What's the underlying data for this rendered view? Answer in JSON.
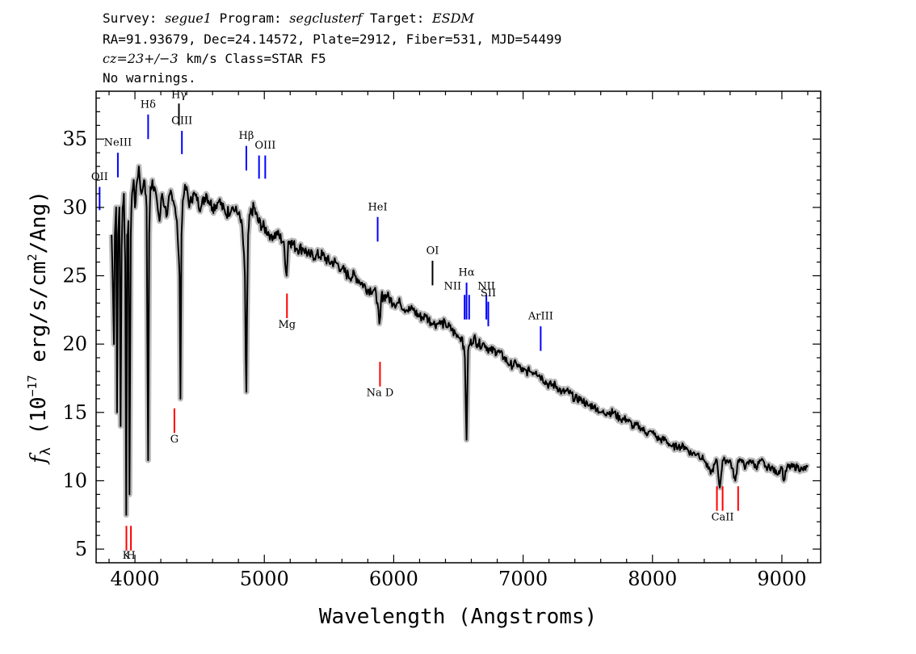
{
  "header": {
    "survey_label": "Survey:",
    "survey": "segue1",
    "program_label": "Program:",
    "program": "segclusterf",
    "target_label": "Target:",
    "target": "ESDM",
    "line2": "RA=91.93679, Dec=24.14572, Plate=2912, Fiber=531, MJD=54499",
    "cz": "cz=23+/−3",
    "cz_unit": "km/s",
    "class_text": "Class=STAR F5",
    "warnings": "No warnings."
  },
  "chart_data": {
    "type": "line",
    "xlabel": "Wavelength (Angstroms)",
    "ylabel": "f_λ (10^-17 erg/s/cm^2/Ang)",
    "ylabel_parts": {
      "f": "f",
      "lambda": "λ",
      "p1": " (10",
      "exp1": "−17",
      "p2": " erg/s/cm",
      "exp2": "2",
      "p3": "/Ang)"
    },
    "xlim": [
      3700,
      9300
    ],
    "ylim": [
      4,
      38.5
    ],
    "xticks": [
      4000,
      5000,
      6000,
      7000,
      8000,
      9000
    ],
    "yticks": [
      5,
      10,
      15,
      20,
      25,
      30,
      35
    ],
    "series": [
      {
        "color": "#000000",
        "error_color": "#bbbbbb",
        "x": [
          3820,
          3830,
          3838,
          3845,
          3855,
          3862,
          3870,
          3880,
          3889,
          3897,
          3905,
          3915,
          3925,
          3933,
          3940,
          3950,
          3958,
          3968,
          3978,
          3990,
          4000,
          4010,
          4030,
          4050,
          4070,
          4080,
          4090,
          4102,
          4110,
          4120,
          4135,
          4150,
          4170,
          4190,
          4210,
          4230,
          4250,
          4270,
          4290,
          4310,
          4325,
          4335,
          4345,
          4352,
          4360,
          4370,
          4380,
          4400,
          4420,
          4450,
          4480,
          4510,
          4550,
          4600,
          4650,
          4700,
          4750,
          4800,
          4830,
          4850,
          4856,
          4861,
          4866,
          4875,
          4890,
          4920,
          4950,
          5000,
          5050,
          5100,
          5150,
          5172,
          5185,
          5200,
          5250,
          5300,
          5350,
          5400,
          5450,
          5500,
          5550,
          5600,
          5650,
          5700,
          5750,
          5800,
          5850,
          5875,
          5889,
          5896,
          5905,
          5920,
          5950,
          6000,
          6050,
          6100,
          6150,
          6200,
          6250,
          6300,
          6350,
          6400,
          6450,
          6500,
          6530,
          6550,
          6558,
          6563,
          6568,
          6575,
          6590,
          6620,
          6650,
          6700,
          6750,
          6800,
          6850,
          6900,
          6950,
          7000,
          7050,
          7100,
          7150,
          7200,
          7250,
          7300,
          7350,
          7400,
          7450,
          7500,
          7550,
          7600,
          7650,
          7700,
          7750,
          7800,
          7850,
          7900,
          7950,
          8000,
          8050,
          8100,
          8150,
          8200,
          8250,
          8300,
          8350,
          8400,
          8450,
          8498,
          8520,
          8542,
          8560,
          8600,
          8640,
          8662,
          8680,
          8720,
          8760,
          8800,
          8840,
          8880,
          8920,
          8960,
          9000,
          9015,
          9040,
          9080,
          9120,
          9160,
          9200
        ],
        "y": [
          28.0,
          24.0,
          20.0,
          28.0,
          30.0,
          15.0,
          28.0,
          30.0,
          14.0,
          27.0,
          30.0,
          31.0,
          26.0,
          7.5,
          28.0,
          29.0,
          9.0,
          28.0,
          31.0,
          32.0,
          30.0,
          31.5,
          33.0,
          31.0,
          32.0,
          31.0,
          30.0,
          11.5,
          28.0,
          31.5,
          32.0,
          31.5,
          30.5,
          29.0,
          31.0,
          30.0,
          29.5,
          31.0,
          30.5,
          30.0,
          29.0,
          27.0,
          25.0,
          16.0,
          28.0,
          30.5,
          31.0,
          31.5,
          30.0,
          31.0,
          30.5,
          30.0,
          31.0,
          30.0,
          30.5,
          29.5,
          30.0,
          29.5,
          28.5,
          25.0,
          19.0,
          16.5,
          22.0,
          28.0,
          29.5,
          30.0,
          29.0,
          28.5,
          28.0,
          28.0,
          27.5,
          25.0,
          27.5,
          27.5,
          27.0,
          27.0,
          26.5,
          26.5,
          26.5,
          26.0,
          26.0,
          25.5,
          25.0,
          25.0,
          24.5,
          24.0,
          24.0,
          23.0,
          21.5,
          22.0,
          23.5,
          23.5,
          23.5,
          23.0,
          23.0,
          22.5,
          22.5,
          22.0,
          22.0,
          21.5,
          21.5,
          21.5,
          21.0,
          20.5,
          20.5,
          19.0,
          15.0,
          13.0,
          16.0,
          19.5,
          20.0,
          20.5,
          20.0,
          20.0,
          19.5,
          19.5,
          19.0,
          18.5,
          18.5,
          18.0,
          18.0,
          18.0,
          17.5,
          17.0,
          17.0,
          16.5,
          16.5,
          16.0,
          16.0,
          15.5,
          15.5,
          15.0,
          15.0,
          15.0,
          14.5,
          14.5,
          14.0,
          14.0,
          13.5,
          13.5,
          13.0,
          13.0,
          12.5,
          12.5,
          12.5,
          12.0,
          12.0,
          11.5,
          10.5,
          11.5,
          9.5,
          11.5,
          11.5,
          11.5,
          10.0,
          11.5,
          11.5,
          11.0,
          11.5,
          11.0,
          11.5,
          11.0,
          11.0,
          10.5,
          11.0,
          10.0,
          11.0,
          11.0,
          11.0,
          10.8,
          11.0
        ]
      }
    ],
    "lines": [
      {
        "label": "OII",
        "x": 3727,
        "color": "#0000ff",
        "ymin": 29.8,
        "ymax": 31.5,
        "label_pos": "above",
        "label_y": 32.0
      },
      {
        "label": "NeIII",
        "x": 3868,
        "color": "#0000ff",
        "ymin": 32.2,
        "ymax": 34.0,
        "label_pos": "above",
        "label_y": 34.5
      },
      {
        "label": "Hδ",
        "x": 4102,
        "color": "#0000ff",
        "ymin": 35.0,
        "ymax": 36.8,
        "label_pos": "above",
        "label_y": 37.3
      },
      {
        "label": "Hγ",
        "x": 4340,
        "color": "#000000",
        "ymin": 36.0,
        "ymax": 37.6,
        "label_pos": "above",
        "label_y": 38.0
      },
      {
        "label": "OIII",
        "x": 4363,
        "color": "#0000ff",
        "ymin": 33.9,
        "ymax": 35.6,
        "label_pos": "above",
        "label_y": 36.1
      },
      {
        "label": "Hβ",
        "x": 4861,
        "color": "#0000ff",
        "ymin": 32.7,
        "ymax": 34.5,
        "label_pos": "above",
        "label_y": 35.0
      },
      {
        "label": "OIII",
        "x": 4959,
        "color": "#0000ff",
        "ymin": 32.1,
        "ymax": 33.8,
        "label_pos": "none"
      },
      {
        "label": "OIII",
        "x": 5007,
        "color": "#0000ff",
        "ymin": 32.1,
        "ymax": 33.8,
        "label_pos": "above",
        "label_y": 34.3
      },
      {
        "label": "HeI",
        "x": 5876,
        "color": "#0000ff",
        "ymin": 27.5,
        "ymax": 29.3,
        "label_pos": "above",
        "label_y": 29.8
      },
      {
        "label": "OI",
        "x": 6300,
        "color": "#000000",
        "ymin": 24.3,
        "ymax": 26.1,
        "label_pos": "above",
        "label_y": 26.6
      },
      {
        "label": "NII",
        "x": 6548,
        "color": "#0000ff",
        "ymin": 21.8,
        "ymax": 23.6,
        "label_pos": "left",
        "label_y": 24.0
      },
      {
        "label": "Hα",
        "x": 6563,
        "color": "#0000ff",
        "ymin": 21.8,
        "ymax": 24.5,
        "label_pos": "above",
        "label_y": 25.0
      },
      {
        "label": "NII",
        "x": 6583,
        "color": "#0000ff",
        "ymin": 21.8,
        "ymax": 23.6,
        "label_pos": "none"
      },
      {
        "label": "NII",
        "x": 6716,
        "color": "#0000ff",
        "ymin": 21.8,
        "ymax": 23.6,
        "label_pos": "above",
        "label_y": 24.0
      },
      {
        "label": "SII",
        "x": 6731,
        "color": "#0000ff",
        "ymin": 21.3,
        "ymax": 23.1,
        "label_pos": "above",
        "label_y": 23.5
      },
      {
        "label": "ArIII",
        "x": 7136,
        "color": "#0000ff",
        "ymin": 19.5,
        "ymax": 21.3,
        "label_pos": "above",
        "label_y": 21.8
      },
      {
        "label": "K",
        "x": 3934,
        "color": "#ff0000",
        "ymin": 4.9,
        "ymax": 6.7,
        "label_pos": "below",
        "label_y": 4.3
      },
      {
        "label": "H",
        "x": 3969,
        "color": "#ff0000",
        "ymin": 4.9,
        "ymax": 6.7,
        "label_pos": "below",
        "label_y": 4.3
      },
      {
        "label": "G",
        "x": 4305,
        "color": "#ff0000",
        "ymin": 13.5,
        "ymax": 15.3,
        "label_pos": "below",
        "label_y": 12.8
      },
      {
        "label": "Mg",
        "x": 5175,
        "color": "#ff0000",
        "ymin": 21.9,
        "ymax": 23.7,
        "label_pos": "below",
        "label_y": 21.2
      },
      {
        "label": "Na D",
        "x": 5894,
        "color": "#ff0000",
        "ymin": 16.9,
        "ymax": 18.7,
        "label_pos": "below",
        "label_y": 16.2
      },
      {
        "label": "CaII",
        "x": 8498,
        "color": "#ff0000",
        "ymin": 7.8,
        "ymax": 9.6,
        "label_pos": "none"
      },
      {
        "label": "CaII",
        "x": 8542,
        "color": "#ff0000",
        "ymin": 7.8,
        "ymax": 9.6,
        "label_pos": "below",
        "label_y": 7.1
      },
      {
        "label": "CaII",
        "x": 8662,
        "color": "#ff0000",
        "ymin": 7.8,
        "ymax": 9.6,
        "label_pos": "none"
      }
    ]
  }
}
